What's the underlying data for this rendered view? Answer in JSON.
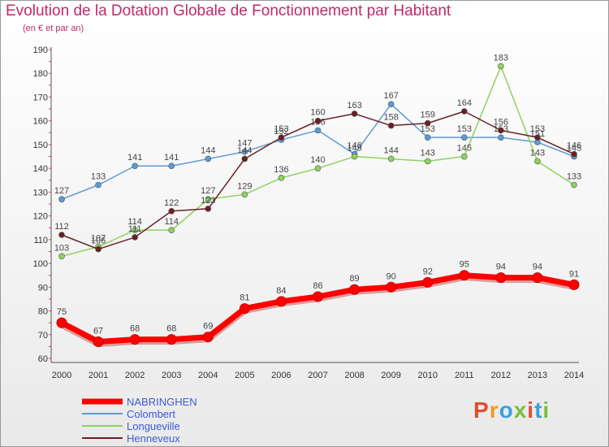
{
  "header": {
    "title": "Evolution de la Dotation Globale de Fonctionnement par Habitant",
    "subtitle": "(en € et par an)"
  },
  "logo": {
    "text": "Proxiti",
    "colors": [
      "#e64b2a",
      "#f29a1f",
      "#3aa0e0",
      "#7bbf3a",
      "#e64b2a",
      "#3aa0e0",
      "#7bbf3a"
    ]
  },
  "chart_data": {
    "type": "line",
    "title": "Evolution de la Dotation Globale de Fonctionnement par Habitant",
    "subtitle": "(en € et par an)",
    "xlabel": "",
    "ylabel": "",
    "categories": [
      "2000",
      "2001",
      "2002",
      "2003",
      "2004",
      "2005",
      "2006",
      "2007",
      "2008",
      "2009",
      "2010",
      "2011",
      "2012",
      "2013",
      "2014"
    ],
    "ylim": [
      60,
      190
    ],
    "yticks": [
      60,
      70,
      80,
      90,
      100,
      110,
      120,
      130,
      140,
      150,
      160,
      170,
      180,
      190
    ],
    "grid": false,
    "legend": "bottom-left",
    "series": [
      {
        "name": "Colombert",
        "color": "#5b9bd5",
        "values": [
          127,
          133,
          141,
          141,
          144,
          147,
          152,
          156,
          146,
          167,
          153,
          153,
          153,
          151,
          145
        ]
      },
      {
        "name": "Longueville",
        "color": "#8cd35e",
        "values": [
          103,
          107,
          114,
          114,
          127,
          129,
          136,
          140,
          145,
          144,
          143,
          145,
          183,
          143,
          133
        ]
      },
      {
        "name": "Henneveux",
        "color": "#6b1f24",
        "values": [
          112,
          106,
          111,
          122,
          123,
          144,
          153,
          160,
          163,
          158,
          159,
          164,
          156,
          153,
          146
        ]
      },
      {
        "name": "NABRINGHEN",
        "color": "#ff0000",
        "values": [
          75,
          67,
          68,
          68,
          69,
          81,
          84,
          86,
          89,
          90,
          92,
          95,
          94,
          94,
          91
        ]
      }
    ]
  }
}
